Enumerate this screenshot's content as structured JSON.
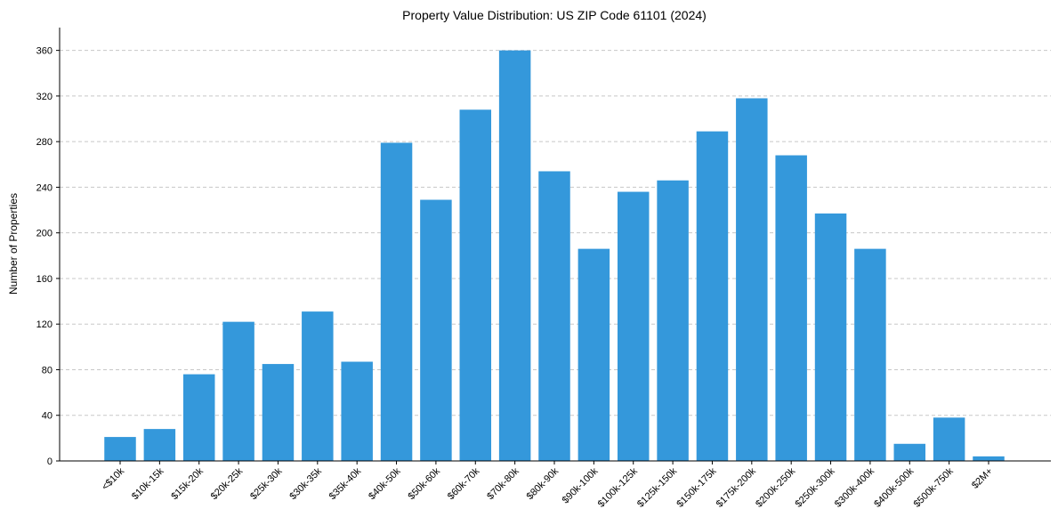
{
  "chart_data": {
    "type": "bar",
    "title": "Property Value Distribution: US ZIP Code 61101 (2024)",
    "xlabel": "",
    "ylabel": "Number of Properties",
    "ylim": [
      0,
      380
    ],
    "yticks": [
      0,
      40,
      80,
      120,
      160,
      200,
      240,
      280,
      320,
      360
    ],
    "grid": "y-dashed",
    "bar_color": "#3498db",
    "categories": [
      "<$10k",
      "$10k-15k",
      "$15k-20k",
      "$20k-25k",
      "$25k-30k",
      "$30k-35k",
      "$35k-40k",
      "$40k-50k",
      "$50k-60k",
      "$60k-70k",
      "$70k-80k",
      "$80k-90k",
      "$90k-100k",
      "$100k-125k",
      "$125k-150k",
      "$150k-175k",
      "$175k-200k",
      "$200k-250k",
      "$250k-300k",
      "$300k-400k",
      "$400k-500k",
      "$500k-750k",
      "$2M+"
    ],
    "values": [
      21,
      28,
      76,
      122,
      85,
      131,
      87,
      279,
      229,
      308,
      360,
      254,
      186,
      236,
      246,
      289,
      318,
      268,
      217,
      186,
      15,
      38,
      4
    ]
  }
}
